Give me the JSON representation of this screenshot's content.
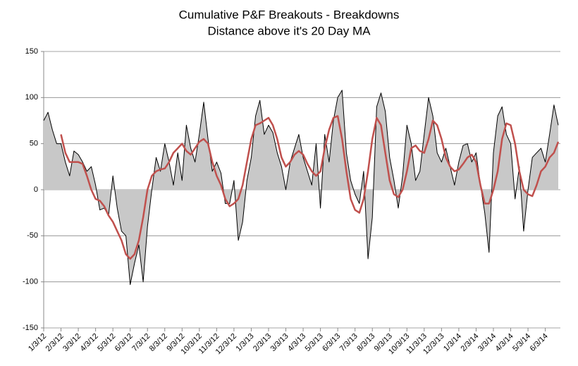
{
  "chart_data": {
    "type": "line",
    "title": "Cumulative P&F Breakouts - Breakdowns",
    "subtitle": "Distance above it's 20 Day MA",
    "categories": [
      "1/3/12",
      null,
      null,
      null,
      "2/3/12",
      null,
      null,
      null,
      "3/3/12",
      null,
      null,
      null,
      "4/3/12",
      null,
      null,
      null,
      "5/3/12",
      null,
      null,
      null,
      "6/3/12",
      null,
      null,
      null,
      "7/3/12",
      null,
      null,
      null,
      "8/3/12",
      null,
      null,
      null,
      "9/3/12",
      null,
      null,
      null,
      "10/3/12",
      null,
      null,
      null,
      "11/3/12",
      null,
      null,
      null,
      "12/3/12",
      null,
      null,
      null,
      "1/3/13",
      null,
      null,
      null,
      "2/3/13",
      null,
      null,
      null,
      "3/3/13",
      null,
      null,
      null,
      "4/3/13",
      null,
      null,
      null,
      "5/3/13",
      null,
      null,
      null,
      "6/3/13",
      null,
      null,
      null,
      "7/3/13",
      null,
      null,
      null,
      "8/3/13",
      null,
      null,
      null,
      "9/3/13",
      null,
      null,
      null,
      "10/3/13",
      null,
      null,
      null,
      "11/3/13",
      null,
      null,
      null,
      "12/3/13",
      null,
      null,
      null,
      "1/3/14",
      null,
      null,
      null,
      "2/3/14",
      null,
      null,
      null,
      "3/3/14",
      null,
      null,
      null,
      "4/3/14",
      null,
      null,
      null,
      "5/3/14",
      null,
      null,
      null,
      "6/3/14",
      null,
      null,
      null
    ],
    "series": [
      {
        "color": "#000000",
        "fill": "#c8c8c8",
        "area": true,
        "values": [
          75,
          84,
          65,
          50,
          50,
          30,
          15,
          42,
          38,
          30,
          20,
          25,
          5,
          -22,
          -20,
          -28,
          15,
          -20,
          -45,
          -50,
          -103,
          -80,
          -60,
          -100,
          -40,
          0,
          35,
          20,
          50,
          30,
          5,
          40,
          10,
          70,
          45,
          30,
          60,
          95,
          55,
          20,
          30,
          18,
          -15,
          -15,
          10,
          -55,
          -35,
          10,
          35,
          80,
          97,
          60,
          70,
          62,
          40,
          25,
          0,
          30,
          45,
          60,
          35,
          20,
          5,
          50,
          -20,
          60,
          30,
          75,
          100,
          108,
          40,
          10,
          -5,
          -15,
          20,
          -75,
          -30,
          90,
          105,
          85,
          35,
          10,
          -20,
          15,
          70,
          50,
          10,
          20,
          60,
          100,
          80,
          40,
          30,
          45,
          25,
          5,
          30,
          48,
          50,
          30,
          40,
          5,
          -25,
          -68,
          40,
          80,
          90,
          60,
          50,
          -10,
          25,
          -45,
          0,
          35,
          40,
          45,
          30,
          60,
          92,
          70
        ]
      },
      {
        "color": "#c0504d",
        "area": false,
        "values": [
          null,
          null,
          null,
          null,
          60,
          40,
          30,
          30,
          30,
          28,
          15,
          0,
          -10,
          -12,
          -18,
          -28,
          -35,
          -45,
          -55,
          -70,
          -75,
          -70,
          -55,
          -30,
          0,
          15,
          20,
          22,
          23,
          30,
          40,
          45,
          50,
          42,
          38,
          45,
          52,
          55,
          50,
          30,
          15,
          5,
          -10,
          -18,
          -15,
          -10,
          5,
          30,
          55,
          70,
          72,
          75,
          78,
          70,
          55,
          35,
          25,
          30,
          38,
          42,
          38,
          28,
          20,
          15,
          20,
          45,
          65,
          78,
          80,
          55,
          20,
          -10,
          -22,
          -25,
          -10,
          20,
          55,
          78,
          70,
          40,
          10,
          -5,
          -8,
          0,
          20,
          45,
          48,
          42,
          40,
          55,
          75,
          70,
          55,
          35,
          25,
          20,
          22,
          28,
          35,
          38,
          30,
          5,
          -15,
          -15,
          0,
          20,
          55,
          72,
          70,
          50,
          20,
          0,
          -5,
          -7,
          5,
          20,
          25,
          35,
          40,
          52
        ]
      }
    ],
    "ylim": [
      -150,
      150
    ],
    "yticks": [
      -150,
      -100,
      -50,
      0,
      50,
      100,
      150
    ],
    "grid": true
  }
}
